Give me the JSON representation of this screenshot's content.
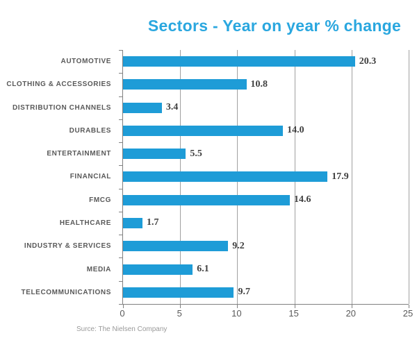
{
  "chart_data": {
    "type": "bar",
    "orientation": "horizontal",
    "title": "Sectors - Year on year % change",
    "categories": [
      "AUTOMOTIVE",
      "CLOTHING & ACCESSORIES",
      "DISTRIBUTION CHANNELS",
      "DURABLES",
      "ENTERTAINMENT",
      "FINANCIAL",
      "FMCG",
      "HEALTHCARE",
      "INDUSTRY & SERVICES",
      "MEDIA",
      "TELECOMMUNICATIONS"
    ],
    "values": [
      20.3,
      10.8,
      3.4,
      14.0,
      5.5,
      17.9,
      14.6,
      1.7,
      9.2,
      6.1,
      9.7
    ],
    "value_labels": [
      "20.3",
      "10.8",
      "3.4",
      "14.0",
      "5.5",
      "17.9",
      "14.6",
      "1.7",
      "9.2",
      "6.1",
      "9.7"
    ],
    "xlabel": "",
    "ylabel": "",
    "xticks": [
      0,
      5,
      10,
      15,
      20,
      25
    ],
    "xlim": [
      0,
      25
    ],
    "grid": "vertical",
    "legend": "none",
    "colors": {
      "bar": "#1e9cd7",
      "title": "#2aa7df",
      "gridline": "#a0a0a0",
      "axis": "#808080",
      "category_label": "#595959",
      "value_label": "#3f3f3f",
      "tick_label": "#595959",
      "source": "#999999"
    }
  },
  "source_note": "Surce: The Nielsen Company"
}
